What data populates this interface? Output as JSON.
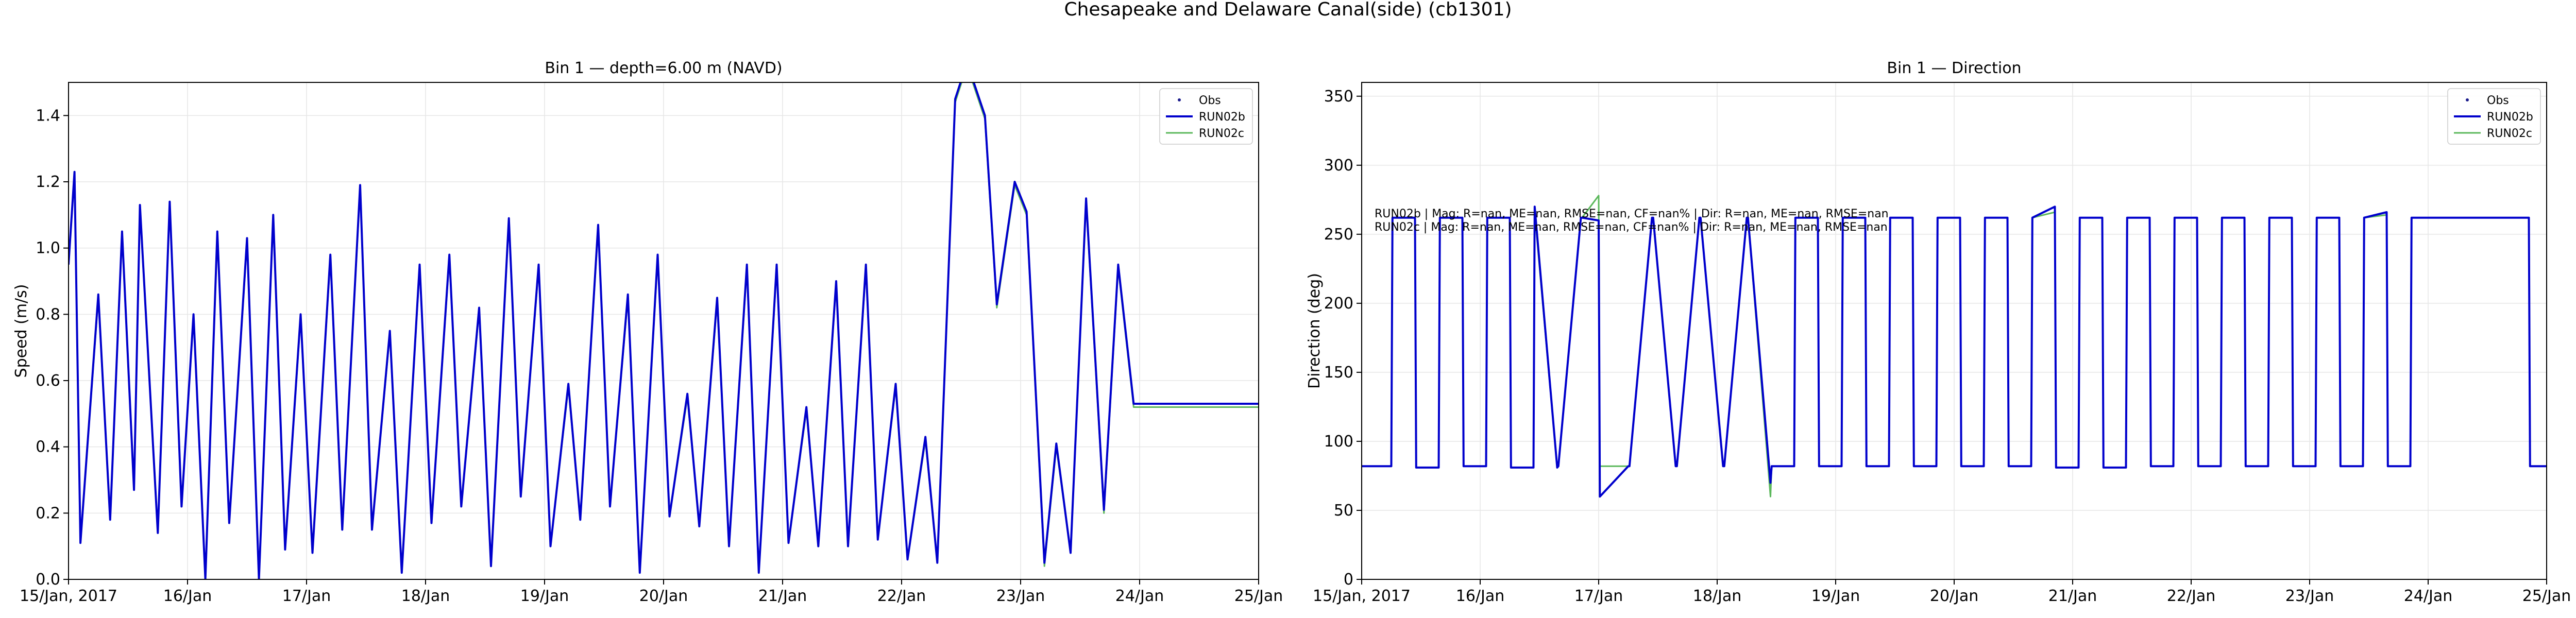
{
  "figure": {
    "suptitle": "Chesapeake and Delaware Canal(side) (cb1301)"
  },
  "colors": {
    "obs": "#1a1a8c",
    "run02b": "#0000cc",
    "run02c": "#5cb85c"
  },
  "legend": [
    "Obs",
    "RUN02b",
    "RUN02c"
  ],
  "stats_lines": [
    "RUN02b | Mag: R=nan, ME=nan, RMSE=nan, CF=nan% | Dir: R=nan, ME=nan, RMSE=nan",
    "RUN02c | Mag: R=nan, ME=nan, RMSE=nan, CF=nan% | Dir: R=nan, ME=nan, RMSE=nan"
  ],
  "chart_data": [
    {
      "type": "line",
      "title": "Bin 1 — depth=6.00 m (NAVD)",
      "xlabel": "",
      "ylabel": "Speed (m/s)",
      "xlim": [
        0,
        10
      ],
      "ylim": [
        0,
        1.5
      ],
      "x_tick_labels": [
        "15/Jan, 2017",
        "16/Jan",
        "17/Jan",
        "18/Jan",
        "19/Jan",
        "20/Jan",
        "21/Jan",
        "22/Jan",
        "23/Jan",
        "24/Jan",
        "25/Jan"
      ],
      "y_ticks": [
        "0.0",
        "0.2",
        "0.4",
        "0.6",
        "0.8",
        "1.0",
        "1.2",
        "1.4"
      ],
      "y_tick_values": [
        0,
        0.2,
        0.4,
        0.6,
        0.8,
        1.0,
        1.2,
        1.4
      ],
      "grid": true,
      "legend_position": "top-right",
      "series": [
        {
          "name": "Obs",
          "values": []
        },
        {
          "name": "RUN02b",
          "x_days": [
            0,
            0.05,
            0.1,
            0.25,
            0.35,
            0.45,
            0.55,
            0.6,
            0.75,
            0.85,
            0.95,
            1.05,
            1.15,
            1.25,
            1.35,
            1.5,
            1.6,
            1.72,
            1.82,
            1.95,
            2.05,
            2.2,
            2.3,
            2.45,
            2.55,
            2.7,
            2.8,
            2.95,
            3.05,
            3.2,
            3.3,
            3.45,
            3.55,
            3.7,
            3.8,
            3.95,
            4.05,
            4.2,
            4.3,
            4.45,
            4.55,
            4.7,
            4.8,
            4.95,
            5.05,
            5.2,
            5.3,
            5.45,
            5.55,
            5.7,
            5.8,
            5.95,
            6.05,
            6.2,
            6.3,
            6.45,
            6.55,
            6.7,
            6.8,
            6.95,
            7.05,
            7.2,
            7.3,
            7.45,
            7.55,
            7.7,
            7.8,
            7.95,
            8.05,
            8.2,
            8.3,
            8.42,
            8.55,
            8.7,
            8.82,
            8.95,
            9.05,
            9.15,
            9.25,
            9.35,
            9.45,
            9.55,
            9.65,
            9.75,
            9.85,
            9.95,
            10.0
          ],
          "values": [
            0.95,
            1.23,
            0.11,
            0.86,
            0.18,
            1.05,
            0.27,
            1.13,
            0.14,
            1.14,
            0.22,
            0.8,
            0.0,
            1.05,
            0.17,
            1.03,
            0.0,
            1.1,
            0.09,
            0.8,
            0.08,
            0.98,
            0.15,
            1.19,
            0.15,
            0.75,
            0.02,
            0.95,
            0.17,
            0.98,
            0.22,
            0.82,
            0.04,
            1.09,
            0.25,
            0.95,
            0.1,
            0.59,
            0.18,
            1.07,
            0.22,
            0.86,
            0.02,
            0.98,
            0.19,
            0.56,
            0.16,
            0.85,
            0.1,
            0.95,
            0.02,
            0.95,
            0.11,
            0.52,
            0.1,
            0.9,
            0.1,
            0.95,
            0.12,
            0.59,
            0.06,
            0.43,
            0.05,
            1.45,
            1.56,
            1.4,
            0.83,
            1.2,
            1.11,
            0.05,
            0.41,
            0.08,
            1.15,
            0.21,
            0.95,
            0.53,
            0.53,
            0.53,
            0.53,
            0.53,
            0.53,
            0.53,
            0.53,
            0.53,
            0.53,
            0.53,
            0.53
          ]
        },
        {
          "name": "RUN02c",
          "x_days": [
            0,
            0.05,
            0.1,
            0.25,
            0.35,
            0.45,
            0.55,
            0.6,
            0.75,
            0.85,
            0.95,
            1.05,
            1.15,
            1.25,
            1.35,
            1.5,
            1.6,
            1.72,
            1.82,
            1.95,
            2.05,
            2.2,
            2.3,
            2.45,
            2.55,
            2.7,
            2.8,
            2.95,
            3.05,
            3.2,
            3.3,
            3.45,
            3.55,
            3.7,
            3.8,
            3.95,
            4.05,
            4.2,
            4.3,
            4.45,
            4.55,
            4.7,
            4.8,
            4.95,
            5.05,
            5.2,
            5.3,
            5.45,
            5.55,
            5.7,
            5.8,
            5.95,
            6.05,
            6.2,
            6.3,
            6.45,
            6.55,
            6.7,
            6.8,
            6.95,
            7.05,
            7.2,
            7.3,
            7.45,
            7.55,
            7.7,
            7.8,
            7.95,
            8.05,
            8.2,
            8.3,
            8.42,
            8.55,
            8.7,
            8.82,
            8.95,
            9.05,
            9.15,
            9.25,
            9.35,
            9.45,
            9.55,
            9.65,
            9.75,
            9.85,
            9.95,
            10.0
          ],
          "values": [
            0.95,
            1.22,
            0.11,
            0.85,
            0.18,
            1.04,
            0.27,
            1.12,
            0.14,
            1.13,
            0.22,
            0.79,
            0.0,
            1.04,
            0.17,
            1.02,
            0.0,
            1.09,
            0.09,
            0.79,
            0.08,
            0.97,
            0.15,
            1.18,
            0.15,
            0.74,
            0.02,
            0.94,
            0.17,
            0.97,
            0.22,
            0.81,
            0.04,
            1.08,
            0.25,
            0.94,
            0.1,
            0.58,
            0.18,
            1.06,
            0.22,
            0.85,
            0.02,
            0.97,
            0.19,
            0.55,
            0.16,
            0.84,
            0.1,
            0.94,
            0.02,
            0.94,
            0.11,
            0.51,
            0.1,
            0.89,
            0.1,
            0.94,
            0.12,
            0.58,
            0.06,
            0.42,
            0.05,
            1.44,
            1.55,
            1.39,
            0.82,
            1.19,
            1.1,
            0.04,
            0.4,
            0.08,
            1.14,
            0.2,
            0.94,
            0.52,
            0.52,
            0.52,
            0.52,
            0.52,
            0.52,
            0.52,
            0.52,
            0.52,
            0.52,
            0.52,
            0.52
          ]
        }
      ]
    },
    {
      "type": "line",
      "title": "Bin 1 — Direction",
      "xlabel": "",
      "ylabel": "Direction (deg)",
      "xlim": [
        0,
        10
      ],
      "ylim": [
        0,
        360
      ],
      "x_tick_labels": [
        "15/Jan, 2017",
        "16/Jan",
        "17/Jan",
        "18/Jan",
        "19/Jan",
        "20/Jan",
        "21/Jan",
        "22/Jan",
        "23/Jan",
        "24/Jan",
        "25/Jan"
      ],
      "y_ticks": [
        "0",
        "50",
        "100",
        "150",
        "200",
        "250",
        "300",
        "350"
      ],
      "y_tick_values": [
        0,
        50,
        100,
        150,
        200,
        250,
        300,
        350
      ],
      "grid": true,
      "legend_position": "top-right",
      "series": [
        {
          "name": "Obs",
          "values": []
        },
        {
          "name": "RUN02b",
          "x_days": [
            0,
            0.25,
            0.26,
            0.45,
            0.46,
            0.65,
            0.66,
            0.85,
            0.86,
            1.05,
            1.06,
            1.25,
            1.26,
            1.45,
            1.46,
            1.65,
            1.66,
            1.85,
            1.86,
            2.0,
            2.01,
            2.25,
            2.26,
            2.45,
            2.46,
            2.65,
            2.66,
            2.85,
            2.86,
            3.05,
            3.06,
            3.25,
            3.26,
            3.45,
            3.46,
            3.65,
            3.66,
            3.85,
            3.86,
            4.05,
            4.06,
            4.25,
            4.26,
            4.45,
            4.46,
            4.65,
            4.66,
            4.85,
            4.86,
            5.05,
            5.06,
            5.25,
            5.26,
            5.45,
            5.46,
            5.65,
            5.66,
            5.85,
            5.86,
            6.05,
            6.06,
            6.25,
            6.26,
            6.45,
            6.46,
            6.65,
            6.66,
            6.85,
            6.86,
            7.05,
            7.06,
            7.25,
            7.26,
            7.45,
            7.46,
            7.65,
            7.66,
            7.85,
            7.86,
            8.05,
            8.06,
            8.25,
            8.26,
            8.45,
            8.46,
            8.65,
            8.66,
            8.85,
            8.86,
            9.05,
            9.06,
            9.25,
            9.26,
            9.45,
            9.46,
            9.65,
            9.66,
            9.85,
            9.86,
            10.0
          ],
          "values": [
            82,
            82,
            262,
            262,
            81,
            81,
            262,
            262,
            82,
            82,
            262,
            262,
            81,
            81,
            270,
            81,
            82,
            262,
            262,
            260,
            60,
            82,
            82,
            262,
            262,
            82,
            82,
            262,
            262,
            82,
            82,
            262,
            262,
            70,
            82,
            82,
            262,
            262,
            82,
            82,
            262,
            262,
            82,
            82,
            262,
            262,
            82,
            82,
            262,
            262,
            82,
            82,
            262,
            262,
            82,
            82,
            262,
            270,
            81,
            81,
            262,
            262,
            81,
            81,
            262,
            262,
            82,
            82,
            262,
            262,
            82,
            82,
            262,
            262,
            82,
            82,
            262,
            262,
            82,
            82,
            262,
            262,
            82,
            82,
            262,
            266,
            82,
            82,
            262,
            262,
            262,
            262,
            262,
            262,
            262,
            262,
            262,
            262,
            82,
            82
          ]
        },
        {
          "name": "RUN02c",
          "x_days": [
            0,
            0.25,
            0.26,
            0.45,
            0.46,
            0.65,
            0.66,
            0.85,
            0.86,
            1.05,
            1.06,
            1.25,
            1.26,
            1.45,
            1.46,
            1.65,
            1.66,
            1.85,
            1.86,
            2.0,
            2.01,
            2.25,
            2.26,
            2.45,
            2.46,
            2.65,
            2.66,
            2.85,
            2.86,
            3.05,
            3.06,
            3.25,
            3.26,
            3.45,
            3.46,
            3.65,
            3.66,
            3.85,
            3.86,
            4.05,
            4.06,
            4.25,
            4.26,
            4.45,
            4.46,
            4.65,
            4.66,
            4.85,
            4.86,
            5.05,
            5.06,
            5.25,
            5.26,
            5.45,
            5.46,
            5.65,
            5.66,
            5.85,
            5.86,
            6.05,
            6.06,
            6.25,
            6.26,
            6.45,
            6.46,
            6.65,
            6.66,
            6.85,
            6.86,
            7.05,
            7.06,
            7.25,
            7.26,
            7.45,
            7.46,
            7.65,
            7.66,
            7.85,
            7.86,
            8.05,
            8.06,
            8.25,
            8.26,
            8.45,
            8.46,
            8.65,
            8.66,
            8.85,
            8.86,
            9.05,
            9.06,
            9.25,
            9.26,
            9.45,
            9.46,
            9.65,
            9.66,
            9.85,
            9.86,
            10.0
          ],
          "values": [
            82,
            82,
            262,
            262,
            81,
            81,
            262,
            262,
            82,
            82,
            262,
            262,
            81,
            81,
            266,
            81,
            82,
            262,
            262,
            278,
            82,
            82,
            82,
            262,
            262,
            82,
            82,
            262,
            262,
            82,
            82,
            262,
            262,
            60,
            82,
            82,
            262,
            262,
            82,
            82,
            262,
            262,
            82,
            82,
            262,
            262,
            82,
            82,
            262,
            262,
            82,
            82,
            262,
            262,
            82,
            82,
            262,
            266,
            81,
            81,
            262,
            262,
            81,
            81,
            262,
            262,
            82,
            82,
            262,
            262,
            82,
            82,
            262,
            262,
            82,
            82,
            262,
            262,
            82,
            82,
            262,
            262,
            82,
            82,
            262,
            264,
            82,
            82,
            262,
            262,
            262,
            262,
            262,
            262,
            262,
            262,
            262,
            262,
            82,
            82
          ]
        }
      ]
    }
  ]
}
